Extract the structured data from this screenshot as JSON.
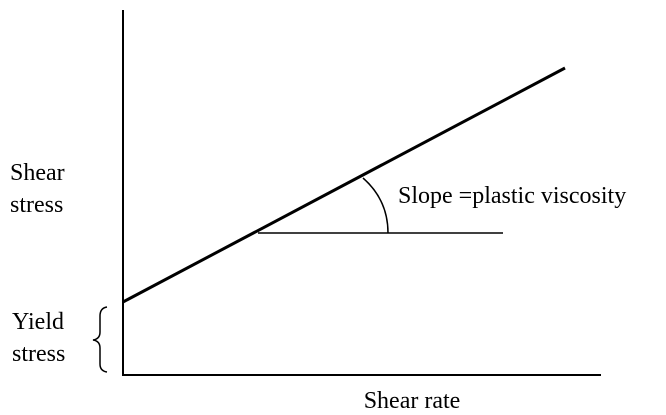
{
  "diagram": {
    "y_axis_label": [
      "Shear",
      "stress"
    ],
    "yield_label": [
      "Yield",
      "stress"
    ],
    "slope_label": "Slope =plastic viscosity",
    "x_axis_label": "Shear rate"
  }
}
